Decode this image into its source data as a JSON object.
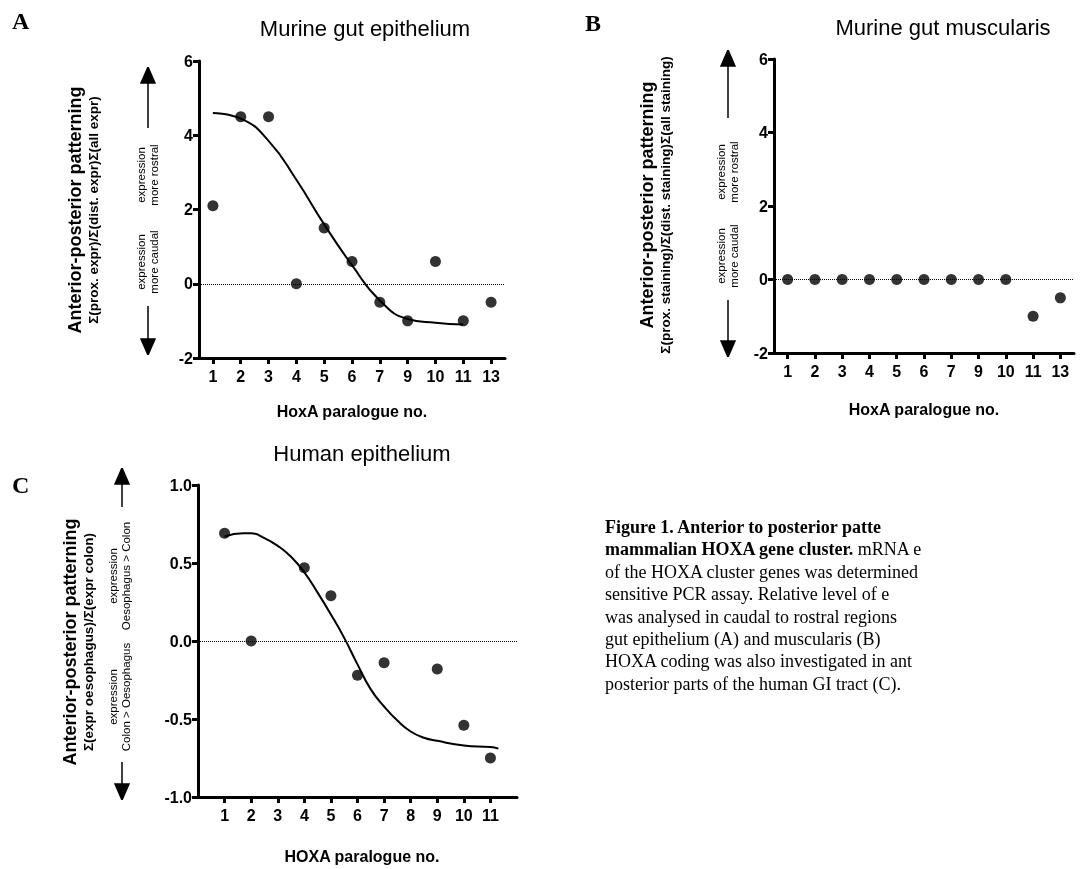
{
  "chart_data": [
    {
      "type": "scatter",
      "title": "Murine gut epithelium",
      "xlabel": "HoxA paralogue no.",
      "ylabel": "Anterior-posterior patterning\nΣ(prox. expr)/Σ(dist. expr)Σ(all expr)",
      "categories": [
        "1",
        "2",
        "3",
        "4",
        "5",
        "6",
        "7",
        "9",
        "10",
        "11",
        "13"
      ],
      "series": [
        {
          "type": "scatter",
          "color": "#000000",
          "values": [
            2.1,
            4.5,
            4.5,
            0,
            1.5,
            0.6,
            -0.5,
            -1.0,
            0.6,
            -1.0,
            -0.5
          ]
        },
        {
          "type": "line",
          "color": "#000000",
          "marker": "none",
          "values": [
            4.6,
            4.45,
            3.85,
            2.8,
            1.6,
            0.5,
            -0.45,
            -0.95,
            -1.05,
            -1.1,
            null
          ]
        }
      ],
      "ylim": [
        -2,
        6
      ],
      "yticks": [
        -2,
        0,
        2,
        4,
        6
      ],
      "marker": "circle",
      "line_style": "solid",
      "ref_lines": [
        {
          "axis": "y",
          "value": 0,
          "line_style": "dotted",
          "color": "#000000"
        }
      ],
      "annotations": [
        "A",
        "expression\nmore rostral",
        "expression\nmore caudal"
      ]
    },
    {
      "type": "scatter",
      "title": "Murine gut muscularis",
      "xlabel": "HoxA paralogue no.",
      "ylabel": "Anterior-posterior patterning\nΣ(prox. staining)/Σ(dist. staining)Σ(all staining)",
      "categories": [
        "1",
        "2",
        "3",
        "4",
        "5",
        "6",
        "7",
        "9",
        "10",
        "11",
        "13"
      ],
      "series": [
        {
          "type": "scatter",
          "color": "#000000",
          "values": [
            0,
            0,
            0,
            0,
            0,
            0,
            0,
            0,
            0,
            -1.0,
            -0.5
          ]
        }
      ],
      "ylim": [
        -2,
        6
      ],
      "yticks": [
        -2,
        0,
        2,
        4,
        6
      ],
      "marker": "circle",
      "ref_lines": [
        {
          "axis": "y",
          "value": 0,
          "line_style": "dotted",
          "color": "#000000"
        }
      ],
      "annotations": [
        "B",
        "expression\nmore rostral",
        "expression\nmore caudal"
      ]
    },
    {
      "type": "scatter",
      "title": "Human epithelium",
      "xlabel": "HOXA paralogue no.",
      "ylabel": "Anterior-posterior patterning\nΣ(expr oesophagus)/Σ(expr colon)",
      "x": [
        1,
        2,
        4,
        5,
        6,
        7,
        9,
        10,
        11
      ],
      "series": [
        {
          "type": "scatter",
          "color": "#000000",
          "values": [
            0.69,
            0.0,
            0.47,
            0.29,
            -0.22,
            -0.14,
            -0.18,
            -0.54,
            -0.75
          ]
        },
        {
          "type": "line",
          "color": "#000000",
          "marker": "none",
          "x": [
            1,
            1.7,
            2,
            2.5,
            3,
            3.5,
            4,
            4.5,
            5,
            5.5,
            6,
            6.5,
            7,
            7.5,
            8,
            8.5,
            9,
            10,
            11,
            11.3
          ],
          "values": [
            0.67,
            0.69,
            0.69,
            0.66,
            0.61,
            0.54,
            0.44,
            0.31,
            0.17,
            0.02,
            -0.15,
            -0.31,
            -0.42,
            -0.51,
            -0.58,
            -0.62,
            -0.64,
            -0.67,
            -0.68,
            -0.69
          ]
        }
      ],
      "xlim": [
        0,
        12
      ],
      "xticks": [
        1,
        2,
        3,
        4,
        5,
        6,
        7,
        8,
        9,
        10,
        11
      ],
      "ylim": [
        -1.0,
        1.0
      ],
      "yticks": [
        {
          "value": -1.0,
          "label": "-1.0"
        },
        {
          "value": -0.5,
          "label": "-0.5"
        },
        {
          "value": 0,
          "label": "0.0"
        },
        {
          "value": 0.5,
          "label": "0.5"
        },
        {
          "value": 1.0,
          "label": "1.0"
        }
      ],
      "marker": "circle",
      "line_style": "solid",
      "ref_lines": [
        {
          "axis": "y",
          "value": 0,
          "line_style": "dotted",
          "color": "#000000"
        }
      ],
      "annotations": [
        "C",
        "expression\nOesophagus > Colon",
        "expression\nColon > Oesophagus"
      ]
    },
    {
      "type": "other",
      "annotations": [
        "Figure 1. Anterior to posterior patte",
        "mammalian HOXA gene cluster.",
        "mRNA e",
        "of the HOXA cluster genes was determined",
        "sensitive PCR assay. Relative level of e",
        "was analysed in caudal to rostral regions",
        "gut epithelium (A) and muscularis (B)",
        "HOXA coding was also investigated in ant",
        "posterior parts of the human GI tract (C)."
      ]
    }
  ]
}
